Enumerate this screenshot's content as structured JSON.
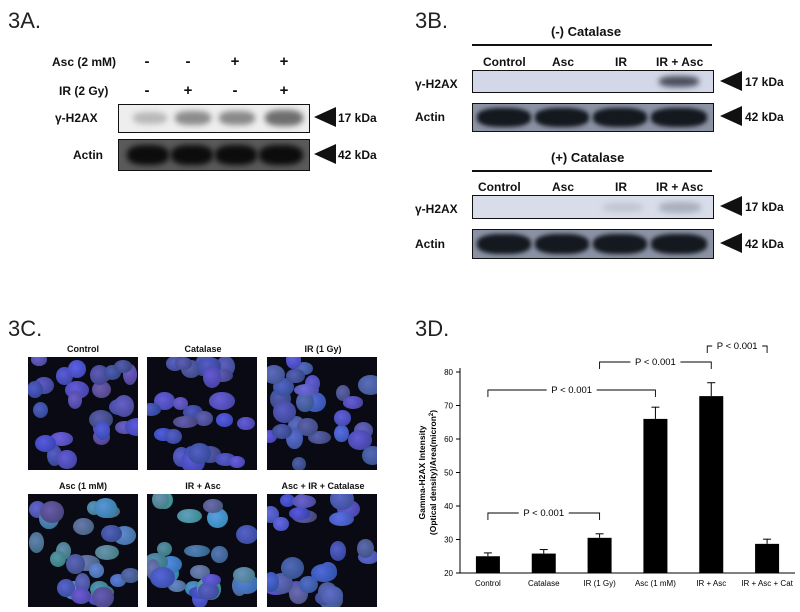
{
  "panel_a": {
    "label": "3A.",
    "rows": [
      {
        "label": "Asc (2 mM)",
        "signs": [
          "-",
          "-",
          "+",
          "+"
        ]
      },
      {
        "label": "IR (2 Gy)",
        "signs": [
          "-",
          "+",
          "-",
          "+"
        ]
      }
    ],
    "blots": [
      {
        "label": "γ-H2AX",
        "kda": "17 kDa"
      },
      {
        "label": "Actin",
        "kda": "42 kDa"
      }
    ]
  },
  "panel_b": {
    "label": "3B.",
    "groups": [
      {
        "title": "(-) Catalase",
        "lanes": [
          "Control",
          "Asc",
          "IR",
          "IR + Asc"
        ],
        "blots": [
          {
            "label": "γ-H2AX",
            "kda": "17 kDa"
          },
          {
            "label": "Actin",
            "kda": "42 kDa"
          }
        ]
      },
      {
        "title": "(+) Catalase",
        "lanes": [
          "Control",
          "Asc",
          "IR",
          "IR + Asc"
        ],
        "blots": [
          {
            "label": "γ-H2AX",
            "kda": "17 kDa"
          },
          {
            "label": "Actin",
            "kda": "42 kDa"
          }
        ]
      }
    ]
  },
  "panel_c": {
    "label": "3C.",
    "images": [
      "Control",
      "Catalase",
      "IR (1 Gy)",
      "Asc (1 mM)",
      "IR + Asc",
      "Asc + IR + Catalase"
    ]
  },
  "panel_d": {
    "label": "3D."
  },
  "chart_data": {
    "type": "bar",
    "categories": [
      "Control",
      "Catalase",
      "IR (1 Gy)",
      "Asc (1 mM)",
      "IR + Asc",
      "IR + Asc + Cat"
    ],
    "values": [
      25,
      25.8,
      30.5,
      66,
      72.8,
      28.7
    ],
    "errors": [
      1.0,
      1.2,
      1.2,
      3.5,
      4.0,
      1.4
    ],
    "ylabel_line1": "Gamma-H2AX Intensity",
    "ylabel_line2": "(Optical density)/Area(micron",
    "ylabel_sup": "2",
    "ylabel_close": ")",
    "ylim": [
      20,
      80
    ],
    "yticks": [
      20,
      30,
      40,
      50,
      60,
      70,
      80
    ],
    "annotations": [
      {
        "text": "P < 0.001",
        "from": 0,
        "to": 2
      },
      {
        "text": "P < 0.001",
        "from": 0,
        "to": 3
      },
      {
        "text": "P < 0.001",
        "from": 2,
        "to": 4
      },
      {
        "text": "P < 0.001",
        "from": 4,
        "to": 5
      }
    ],
    "colors": {
      "bar": "#000000"
    }
  }
}
